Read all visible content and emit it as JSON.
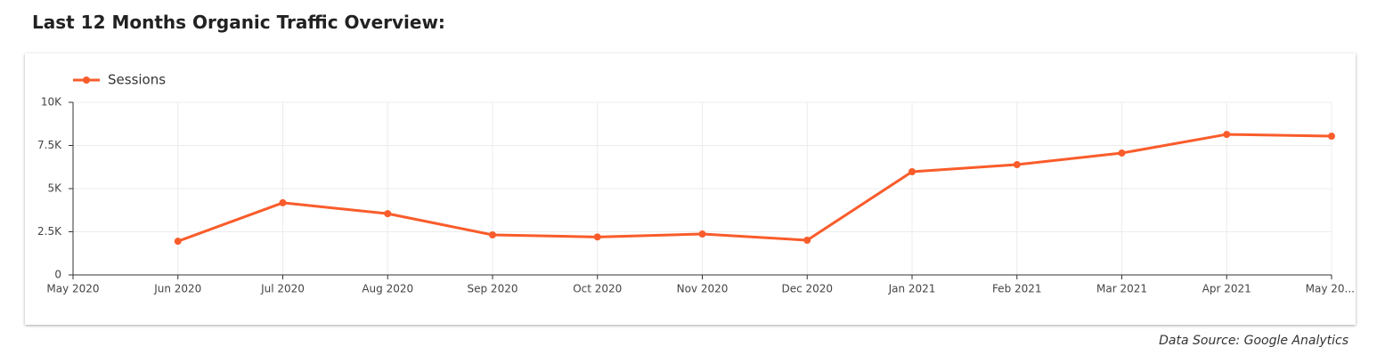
{
  "chart_data": {
    "type": "line",
    "title": "Last 12 Months Organic Traffic Overview:",
    "source": "Data Source: Google Analytics",
    "categories": [
      "May 2020",
      "Jun 2020",
      "Jul 2020",
      "Aug 2020",
      "Sep 2020",
      "Oct 2020",
      "Nov 2020",
      "Dec 2020",
      "Jan 2021",
      "Feb 2021",
      "Mar 2021",
      "Apr 2021",
      "May 20..."
    ],
    "series": [
      {
        "name": "Sessions",
        "color": "#f95c2b",
        "values": [
          null,
          1950,
          4180,
          3550,
          2320,
          2200,
          2370,
          2010,
          5980,
          6390,
          7060,
          8140,
          8040
        ]
      }
    ],
    "ylim": [
      0,
      10000
    ],
    "yticks": [
      0,
      {
        "value": 2500,
        "label": "2.5K"
      },
      {
        "value": 5000,
        "label": "5K"
      },
      {
        "value": 7500,
        "label": "7.5K"
      },
      {
        "value": 10000,
        "label": "10K"
      }
    ],
    "grid": true,
    "legend": "top-left"
  }
}
